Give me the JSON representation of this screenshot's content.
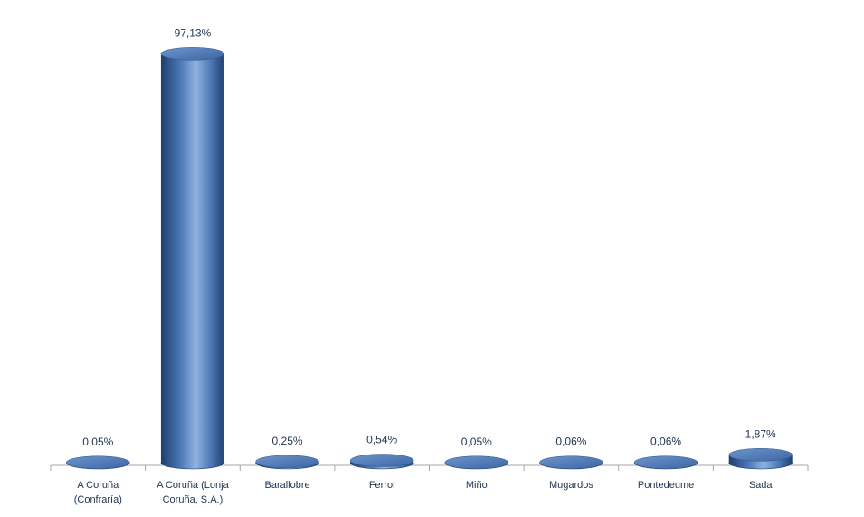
{
  "chart_data": {
    "type": "bar",
    "style": "3d-cylinder",
    "categories": [
      [
        "A Coruña",
        "(Confraría)"
      ],
      [
        "A Coruña (Lonja",
        "Coruña, S.A.)"
      ],
      [
        "Barallobre"
      ],
      [
        "Ferrol"
      ],
      [
        "Miño"
      ],
      [
        "Mugardos"
      ],
      [
        "Pontedeume"
      ],
      [
        "Sada"
      ]
    ],
    "values": [
      0.05,
      97.13,
      0.25,
      0.54,
      0.05,
      0.06,
      0.06,
      1.87
    ],
    "data_labels": [
      "0,05%",
      "97,13%",
      "0,25%",
      "0,54%",
      "0,05%",
      "0,06%",
      "0,06%",
      "1,87%"
    ],
    "title": "",
    "xlabel": "",
    "ylabel": "",
    "ylim": [
      0,
      100
    ],
    "grid": false,
    "legend": "none",
    "colors": {
      "bar": "#4a76b4",
      "bar_dark": "#1e3f6e",
      "bar_light": "#9dbde6",
      "axis": "#a6a6a6",
      "text": "#1f3550"
    }
  }
}
